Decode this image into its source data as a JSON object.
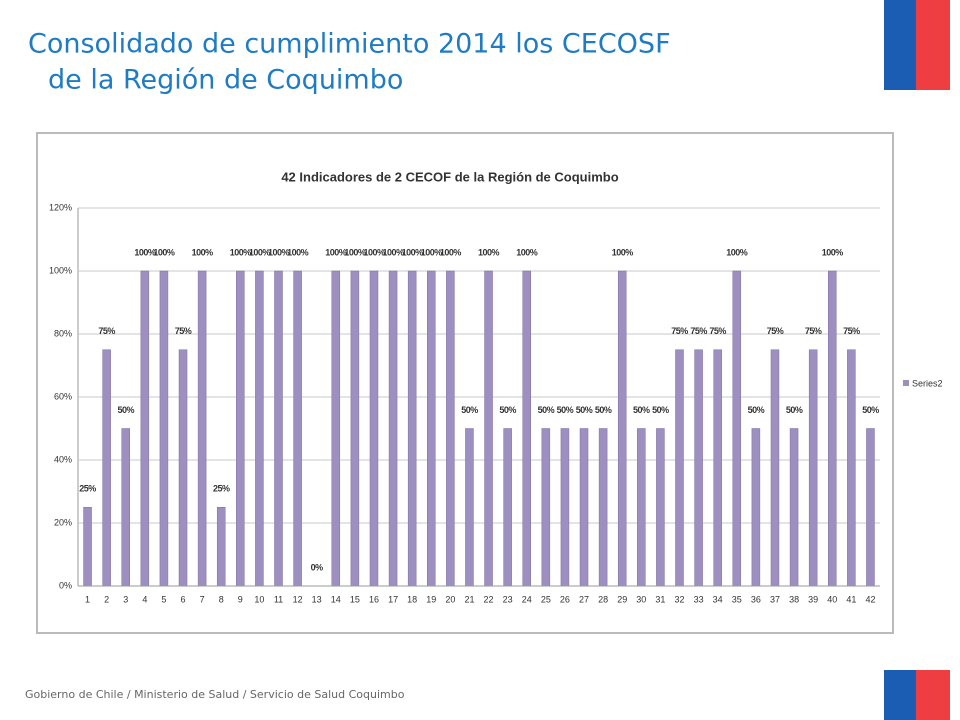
{
  "slide": {
    "title_lines": [
      "Consolidado de cumplimiento 2014  los CECOSF",
      "de la Región de Coquimbo"
    ],
    "footer": "Gobierno de Chile / Ministerio de Salud / Servicio de Salud Coquimbo"
  },
  "chart_data": {
    "type": "bar",
    "title": "42 Indicadores de 2 CECOF de la Región de Coquimbo",
    "categories": [
      "1",
      "2",
      "3",
      "4",
      "5",
      "6",
      "7",
      "8",
      "9",
      "10",
      "11",
      "12",
      "13",
      "14",
      "15",
      "16",
      "17",
      "18",
      "19",
      "20",
      "21",
      "22",
      "23",
      "24",
      "25",
      "26",
      "27",
      "28",
      "29",
      "30",
      "31",
      "32",
      "33",
      "34",
      "35",
      "36",
      "37",
      "38",
      "39",
      "40",
      "41",
      "42"
    ],
    "series": [
      {
        "name": "Series2",
        "color": "#9d8fbf",
        "values": [
          25,
          75,
          50,
          100,
          100,
          75,
          100,
          25,
          100,
          100,
          100,
          100,
          0,
          100,
          100,
          100,
          100,
          100,
          100,
          100,
          50,
          100,
          50,
          100,
          50,
          50,
          50,
          50,
          100,
          50,
          50,
          75,
          75,
          75,
          100,
          50,
          75,
          50,
          75,
          100,
          75,
          50
        ],
        "value_labels": [
          "25%",
          "75%",
          "50%",
          "100%",
          "100%",
          "75%",
          "100%",
          "25%",
          "100%",
          "100%",
          "100%",
          "100%",
          "0%",
          "100%",
          "100%",
          "100%",
          "100%",
          "100%",
          "100%",
          "100%",
          "50%",
          "100%",
          "50%",
          "100%",
          "50%",
          "50%",
          "50%",
          "50%",
          "100%",
          "50%",
          "50%",
          "75%",
          "75%",
          "75%",
          "100%",
          "50%",
          "75%",
          "50%",
          "75%",
          "100%",
          "75%",
          "50%"
        ]
      }
    ],
    "ylim": [
      0,
      120
    ],
    "yticks": [
      {
        "value": 0,
        "label": "0%"
      },
      {
        "value": 20,
        "label": "20%"
      },
      {
        "value": 40,
        "label": "40%"
      },
      {
        "value": 60,
        "label": "60%"
      },
      {
        "value": 80,
        "label": "80%"
      },
      {
        "value": 100,
        "label": "100%"
      },
      {
        "value": 120,
        "label": "120%"
      }
    ],
    "grid": true,
    "legend": "right"
  }
}
